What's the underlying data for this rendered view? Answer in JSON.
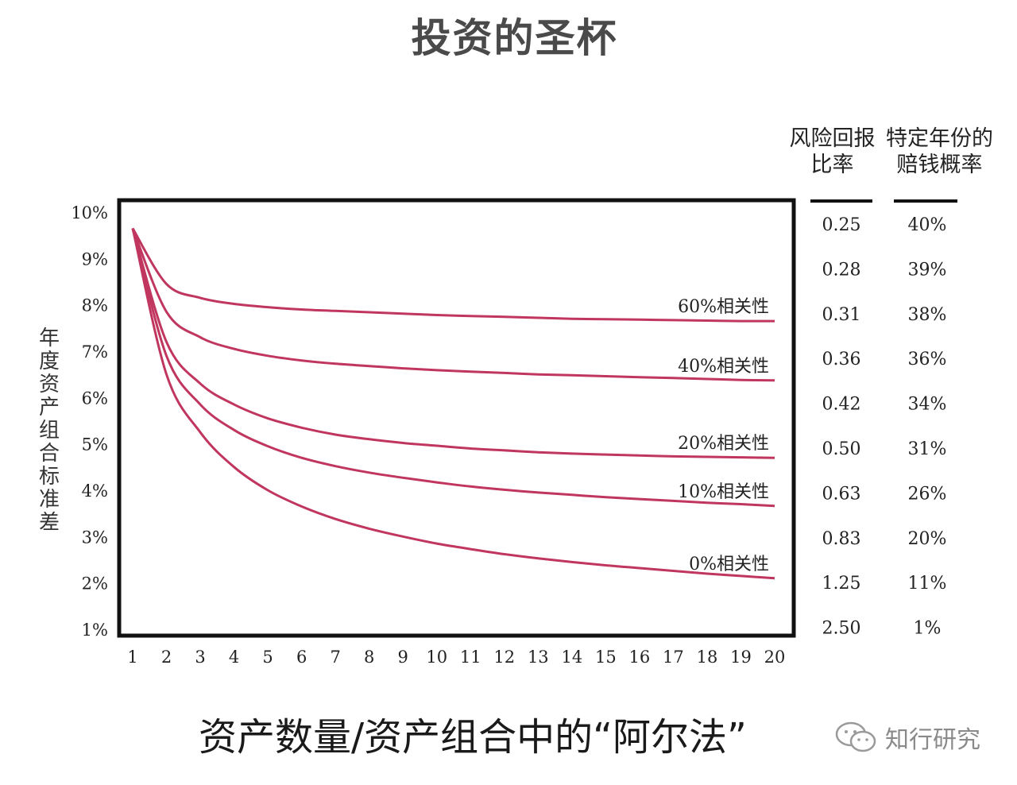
{
  "title": "投资的圣杯",
  "xlabel": "资产数量/资产组合中的“阿尔法”",
  "ylabel": "年度资产组合标准差",
  "watermark": {
    "icon": "wechat-icon",
    "text": "知行研究"
  },
  "table": {
    "col1_header": [
      "风险回报",
      "比率"
    ],
    "col2_header": [
      "特定年份的",
      "赔钱概率"
    ],
    "ratio": [
      "0.25",
      "0.28",
      "0.31",
      "0.36",
      "0.42",
      "0.50",
      "0.63",
      "0.83",
      "1.25",
      "2.50"
    ],
    "loss_prob": [
      "40%",
      "39%",
      "38%",
      "36%",
      "34%",
      "31%",
      "26%",
      "20%",
      "11%",
      "1%"
    ]
  },
  "chart_data": {
    "type": "line",
    "title": "投资的圣杯",
    "xlabel": "资产数量/资产组合中的“阿尔法”",
    "ylabel": "年度资产组合标准差",
    "x": [
      1,
      2,
      3,
      4,
      5,
      6,
      7,
      8,
      9,
      10,
      11,
      12,
      13,
      14,
      15,
      16,
      17,
      18,
      19,
      20
    ],
    "y_ticks": [
      "10%",
      "9%",
      "8%",
      "7%",
      "6%",
      "5%",
      "4%",
      "3%",
      "2%",
      "1%"
    ],
    "xlim": [
      1,
      20
    ],
    "ylim": [
      1,
      10
    ],
    "grid": false,
    "series_color": "#c0365f",
    "series": [
      {
        "name": "60%相关性",
        "values": [
          9.65,
          8.45,
          8.15,
          8.02,
          7.95,
          7.9,
          7.87,
          7.84,
          7.81,
          7.78,
          7.76,
          7.74,
          7.72,
          7.7,
          7.69,
          7.68,
          7.67,
          7.66,
          7.65,
          7.65
        ]
      },
      {
        "name": "40%相关性",
        "values": [
          9.65,
          7.85,
          7.3,
          7.05,
          6.9,
          6.8,
          6.73,
          6.68,
          6.63,
          6.59,
          6.56,
          6.53,
          6.5,
          6.48,
          6.46,
          6.44,
          6.42,
          6.4,
          6.38,
          6.37
        ]
      },
      {
        "name": "20%相关性",
        "values": [
          9.65,
          7.2,
          6.3,
          5.85,
          5.55,
          5.35,
          5.2,
          5.1,
          5.02,
          4.96,
          4.9,
          4.86,
          4.82,
          4.79,
          4.77,
          4.75,
          4.73,
          4.72,
          4.71,
          4.7
        ]
      },
      {
        "name": "10%相关性",
        "values": [
          9.65,
          6.9,
          5.85,
          5.3,
          4.95,
          4.7,
          4.52,
          4.38,
          4.27,
          4.17,
          4.08,
          4.01,
          3.95,
          3.9,
          3.85,
          3.81,
          3.77,
          3.73,
          3.7,
          3.66
        ]
      },
      {
        "name": "0%相关性",
        "values": [
          9.65,
          6.5,
          5.25,
          4.5,
          4.0,
          3.65,
          3.38,
          3.17,
          3.0,
          2.85,
          2.73,
          2.62,
          2.53,
          2.45,
          2.38,
          2.32,
          2.26,
          2.2,
          2.15,
          2.1
        ]
      }
    ]
  }
}
